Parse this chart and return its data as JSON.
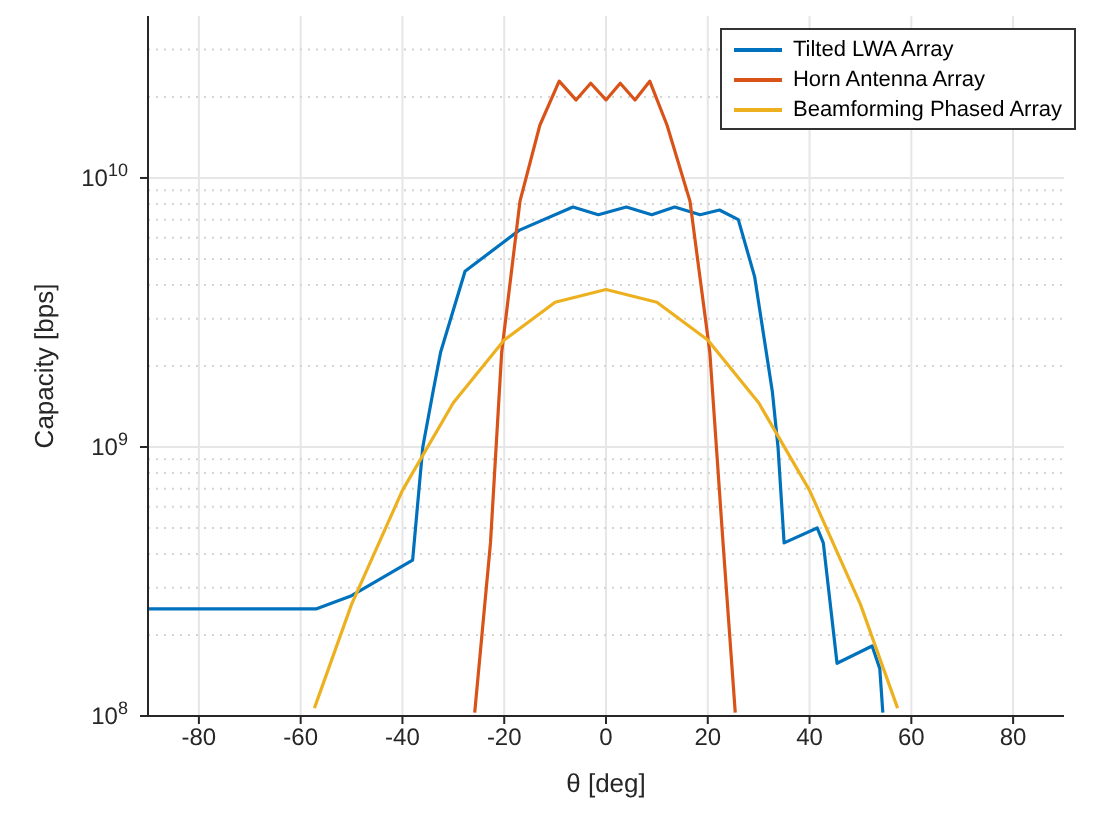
{
  "chart_data": {
    "type": "line",
    "xlabel": "θ [deg]",
    "ylabel": "Capacity [bps]",
    "log": "y",
    "grid": true,
    "legend": "top right",
    "marker": "none",
    "line_style": "solid",
    "xlim": [
      -90,
      90
    ],
    "xticks": [
      -80,
      -60,
      -40,
      -20,
      0,
      20,
      40,
      60,
      80
    ],
    "ylim": [
      100000000,
      40000000000
    ],
    "yticks": [
      {
        "value": 100000000,
        "label": "10$^{8}$"
      },
      {
        "value": 1000000000,
        "label": "10$^{9}$"
      },
      {
        "value": 10000000000,
        "label": "10$^{10}$"
      }
    ],
    "series": [
      {
        "name": "Tilted LWA Array",
        "color": "#0072bd",
        "x": [
          -90,
          -57,
          -50,
          -38,
          -36,
          -34,
          -32.5,
          -27.7,
          -17,
          -6.5,
          -1.5,
          4,
          9,
          13.5,
          18.5,
          22.3,
          26,
          29.2,
          32.7,
          33.8,
          35,
          41.5,
          42.7,
          45.4,
          52.3,
          53.8,
          54.4
        ],
        "values": [
          250000000,
          250000000,
          280000000,
          380000000,
          1000000000,
          1600000000,
          2250000000,
          4500000000,
          6400000000,
          7800000000,
          7300000000,
          7800000000,
          7300000000,
          7800000000,
          7300000000,
          7600000000,
          7000000000,
          4300000000,
          1600000000,
          1000000000,
          440000000,
          500000000,
          440000000,
          157000000,
          182000000,
          150000000,
          103000000
        ]
      },
      {
        "name": "Horn Antenna Array",
        "color": "#d95319",
        "x": [
          -25.8,
          -22.7,
          -20.5,
          -16.9,
          -13,
          -9.2,
          -5.9,
          -3,
          0,
          2.8,
          5.7,
          8.6,
          12,
          16.5,
          20.4,
          23,
          25.4
        ],
        "values": [
          103000000,
          440000000,
          2250000000,
          8200000000,
          15700000000,
          22900000000,
          19500000000,
          22500000000,
          19500000000,
          22500000000,
          19500000000,
          22900000000,
          15700000000,
          8200000000,
          2250000000,
          440000000,
          103000000
        ]
      },
      {
        "name": "Beamforming Phased Array",
        "color": "#edb120",
        "x": [
          -57.3,
          -50,
          -40,
          -30,
          -20,
          -10,
          0,
          10,
          20,
          30,
          40,
          50,
          57.3
        ],
        "values": [
          107000000,
          260000000,
          690000000,
          1460000000,
          2500000000,
          3450000000,
          3850000000,
          3450000000,
          2500000000,
          1460000000,
          690000000,
          260000000,
          107000000
        ]
      }
    ]
  }
}
